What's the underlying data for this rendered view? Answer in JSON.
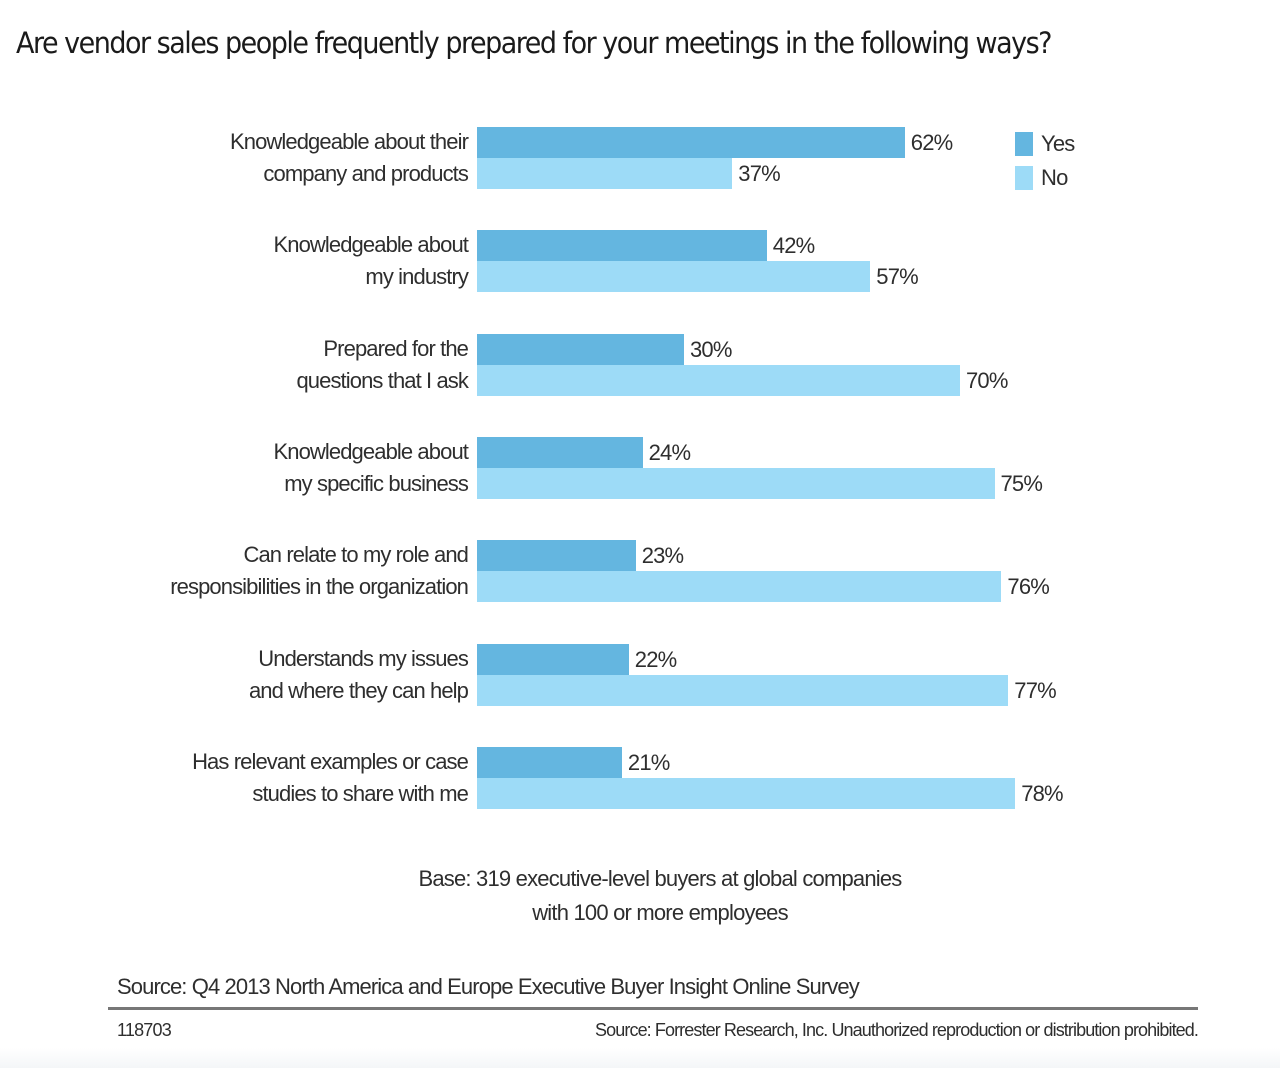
{
  "title": "Are vendor sales people frequently prepared for your meetings in the following ways?",
  "legend": [
    {
      "label": "Yes",
      "color": "#64b6e0"
    },
    {
      "label": "No",
      "color": "#9ddbf7"
    }
  ],
  "groups": [
    {
      "line1": "Knowledgeable about their",
      "line2": "company and products",
      "yes": "62%",
      "no": "37%"
    },
    {
      "line1": "Knowledgeable about",
      "line2": "my industry",
      "yes": "42%",
      "no": "57%"
    },
    {
      "line1": "Prepared for the",
      "line2": "questions that I ask",
      "yes": "30%",
      "no": "70%"
    },
    {
      "line1": "Knowledgeable about",
      "line2": "my specific business",
      "yes": "24%",
      "no": "75%"
    },
    {
      "line1": "Can relate to my role and",
      "line2": "responsibilities in the organization",
      "yes": "23%",
      "no": "76%"
    },
    {
      "line1": "Understands my issues",
      "line2": "and where they can help",
      "yes": "22%",
      "no": "77%"
    },
    {
      "line1": "Has relevant examples or case",
      "line2": "studies to share with me",
      "yes": "21%",
      "no": "78%"
    }
  ],
  "base": {
    "line1": "Base: 319 executive-level buyers at global companies",
    "line2": "with 100 or more employees"
  },
  "source": "Source: Q4 2013 North America and Europe Executive Buyer Insight Online Survey",
  "code": "118703",
  "copyright": "Source: Forrester Research, Inc. Unauthorized reproduction or distribution prohibited.",
  "chart_data": {
    "type": "bar",
    "orientation": "horizontal",
    "title": "Are vendor sales people frequently prepared for your meetings in the following ways?",
    "categories": [
      "Knowledgeable about their company and products",
      "Knowledgeable about my industry",
      "Prepared for the questions that I ask",
      "Knowledgeable about my specific business",
      "Can relate to my role and responsibilities in the organization",
      "Understands my issues and where they can help",
      "Has relevant examples or case studies to share with me"
    ],
    "series": [
      {
        "name": "Yes",
        "color": "#64b6e0",
        "values": [
          62,
          42,
          30,
          24,
          23,
          22,
          21
        ]
      },
      {
        "name": "No",
        "color": "#9ddbf7",
        "values": [
          37,
          57,
          70,
          75,
          76,
          77,
          78
        ]
      }
    ],
    "xlabel": "",
    "ylabel": "",
    "xlim": [
      0,
      100
    ],
    "unit": "%",
    "grid": false,
    "legend_position": "top-right",
    "annotations": [
      "Base: 319 executive-level buyers at global companies with 100 or more employees",
      "Source: Q4 2013 North America and Europe Executive Buyer Insight Online Survey",
      "118703",
      "Source: Forrester Research, Inc. Unauthorized reproduction or distribution prohibited."
    ]
  }
}
